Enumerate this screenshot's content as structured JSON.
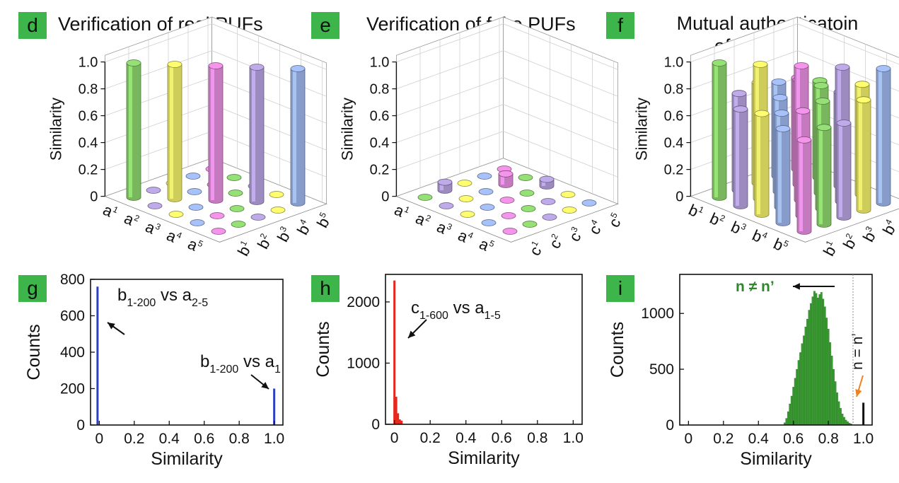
{
  "panels": {
    "d": {
      "tag": "d",
      "title": "Verification of real PUFs"
    },
    "e": {
      "tag": "e",
      "title": "Verification of fake PUFs"
    },
    "f": {
      "tag": "f",
      "title_line1": "Mutual authenticatoin",
      "title_line2": "of real PUFs"
    },
    "g": {
      "tag": "g"
    },
    "h": {
      "tag": "h"
    },
    "i": {
      "tag": "i"
    }
  },
  "chart_data": [
    {
      "id": "d",
      "type": "bar3d",
      "zlabel": "Similarity",
      "zticks": [
        "0",
        "0.2",
        "0.4",
        "0.6",
        "0.8",
        "1.0"
      ],
      "rows": [
        "a1",
        "a2",
        "a3",
        "a4",
        "a5"
      ],
      "cols": [
        "b1",
        "b2",
        "b3",
        "b4",
        "b5"
      ],
      "values": [
        [
          1.0,
          0,
          0,
          0,
          0
        ],
        [
          0,
          1.0,
          0,
          0,
          0
        ],
        [
          0,
          0,
          1.0,
          0,
          0
        ],
        [
          0,
          0,
          0,
          1.0,
          0
        ],
        [
          0,
          0,
          0,
          0,
          1.0
        ]
      ],
      "colors": [
        "#8ed66f",
        "#b7a3df",
        "#f2f06a",
        "#9fb8ee",
        "#e88ee0"
      ]
    },
    {
      "id": "e",
      "type": "bar3d",
      "zlabel": "Similarity",
      "zticks": [
        "0",
        "0.2",
        "0.4",
        "0.6",
        "0.8",
        "1.0"
      ],
      "rows": [
        "a1",
        "a2",
        "a3",
        "a4",
        "a5"
      ],
      "cols": [
        "c1",
        "c2",
        "c3",
        "c4",
        "c5"
      ],
      "values": [
        [
          0,
          0.06,
          0,
          0,
          0
        ],
        [
          0,
          0,
          0,
          0.08,
          0
        ],
        [
          0,
          0,
          0,
          0,
          0.05
        ],
        [
          0,
          0,
          0,
          0,
          0
        ],
        [
          0,
          0,
          0,
          0,
          0
        ]
      ],
      "colors": [
        "#8ed66f",
        "#b7a3df",
        "#f2f06a",
        "#9fb8ee",
        "#e88ee0"
      ]
    },
    {
      "id": "f",
      "type": "bar3d",
      "zlabel": "Similarity",
      "zticks": [
        "0",
        "0.2",
        "0.4",
        "0.6",
        "0.8",
        "1.0"
      ],
      "rows": [
        "b1",
        "b2",
        "b3",
        "b4",
        "b5"
      ],
      "cols": [
        "b1",
        "b2",
        "b3",
        "b4",
        "b5"
      ],
      "values": [
        [
          1.0,
          0.72,
          0.75,
          0.7,
          0.68
        ],
        [
          0.72,
          1.0,
          0.7,
          0.78,
          0.72
        ],
        [
          0.75,
          0.7,
          1.0,
          0.8,
          0.7
        ],
        [
          0.7,
          0.78,
          0.8,
          1.0,
          0.82
        ],
        [
          0.68,
          0.72,
          0.7,
          0.82,
          1.0
        ]
      ],
      "colors": [
        "#8ed66f",
        "#b7a3df",
        "#f2f06a",
        "#9fb8ee",
        "#e88ee0"
      ]
    },
    {
      "id": "g",
      "type": "bar",
      "xlabel": "Similarity",
      "ylabel": "Counts",
      "xlim": [
        -0.05,
        1.05
      ],
      "ylim": [
        0,
        800
      ],
      "xticks": [
        0,
        0.2,
        0.4,
        0.6,
        0.8,
        1.0
      ],
      "xticklabels": [
        "0",
        "0.2",
        "0.4",
        "0.6",
        "0.8",
        "1.0"
      ],
      "yticks": [
        0,
        200,
        400,
        600,
        800
      ],
      "color": "#2f3fc2",
      "bins": [
        {
          "x": -0.01,
          "y": 760
        },
        {
          "x": 1.0,
          "y": 200
        }
      ],
      "annotations": [
        {
          "main": "b",
          "sub": "1-200",
          "rest": " vs a",
          "sub2": "2-5"
        },
        {
          "main": "b",
          "sub": "1-200",
          "rest": " vs a",
          "sub2": "1"
        }
      ]
    },
    {
      "id": "h",
      "type": "bar",
      "xlabel": "Similarity",
      "ylabel": "Counts",
      "xlim": [
        -0.05,
        1.05
      ],
      "ylim": [
        0,
        2450
      ],
      "xticks": [
        0,
        0.2,
        0.4,
        0.6,
        0.8,
        1.0
      ],
      "xticklabels": [
        "0",
        "0.2",
        "0.4",
        "0.6",
        "0.8",
        "1.0"
      ],
      "yticks": [
        0,
        1000,
        2000
      ],
      "color": "#e8271f",
      "bins": [
        {
          "x": 0.0,
          "y": 2350
        },
        {
          "x": 0.01,
          "y": 450
        },
        {
          "x": 0.02,
          "y": 180
        },
        {
          "x": 0.03,
          "y": 80
        },
        {
          "x": 0.04,
          "y": 60
        }
      ],
      "annotations": [
        {
          "main": "c",
          "sub": "1-600",
          "rest": " vs a",
          "sub2": "1-5"
        }
      ]
    },
    {
      "id": "i",
      "type": "histogram",
      "xlabel": "Similarity",
      "ylabel": "Counts",
      "xlim": [
        -0.05,
        1.05
      ],
      "ylim": [
        0,
        1350
      ],
      "xticks": [
        0,
        0.2,
        0.4,
        0.6,
        0.8,
        1.0
      ],
      "xticklabels": [
        "0",
        "0.2",
        "0.4",
        "0.6",
        "0.8",
        "1.0"
      ],
      "yticks": [
        0,
        500,
        1000
      ],
      "color": "#3a9a32",
      "bins": [
        {
          "x": 0.55,
          "y": 20
        },
        {
          "x": 0.56,
          "y": 60
        },
        {
          "x": 0.57,
          "y": 120
        },
        {
          "x": 0.58,
          "y": 190
        },
        {
          "x": 0.59,
          "y": 260
        },
        {
          "x": 0.6,
          "y": 340
        },
        {
          "x": 0.61,
          "y": 420
        },
        {
          "x": 0.62,
          "y": 500
        },
        {
          "x": 0.63,
          "y": 580
        },
        {
          "x": 0.64,
          "y": 650
        },
        {
          "x": 0.65,
          "y": 730
        },
        {
          "x": 0.66,
          "y": 800
        },
        {
          "x": 0.67,
          "y": 880
        },
        {
          "x": 0.68,
          "y": 950
        },
        {
          "x": 0.69,
          "y": 1030
        },
        {
          "x": 0.7,
          "y": 1090
        },
        {
          "x": 0.71,
          "y": 1150
        },
        {
          "x": 0.72,
          "y": 1200
        },
        {
          "x": 0.73,
          "y": 1180
        },
        {
          "x": 0.74,
          "y": 1140
        },
        {
          "x": 0.75,
          "y": 1170
        },
        {
          "x": 0.76,
          "y": 1190
        },
        {
          "x": 0.77,
          "y": 1130
        },
        {
          "x": 0.78,
          "y": 1060
        },
        {
          "x": 0.79,
          "y": 960
        },
        {
          "x": 0.8,
          "y": 860
        },
        {
          "x": 0.81,
          "y": 740
        },
        {
          "x": 0.82,
          "y": 620
        },
        {
          "x": 0.83,
          "y": 500
        },
        {
          "x": 0.84,
          "y": 390
        },
        {
          "x": 0.85,
          "y": 290
        },
        {
          "x": 0.86,
          "y": 210
        },
        {
          "x": 0.87,
          "y": 150
        },
        {
          "x": 0.88,
          "y": 100
        },
        {
          "x": 0.89,
          "y": 70
        },
        {
          "x": 0.9,
          "y": 45
        },
        {
          "x": 0.91,
          "y": 30
        },
        {
          "x": 0.92,
          "y": 18
        },
        {
          "x": 0.93,
          "y": 10
        },
        {
          "x": 0.94,
          "y": 6
        }
      ],
      "extra_bin": {
        "x": 1.0,
        "y": 200,
        "color": "#111111"
      },
      "labels": {
        "neq": "n ≠ n’",
        "eq": "n = n’"
      }
    }
  ]
}
